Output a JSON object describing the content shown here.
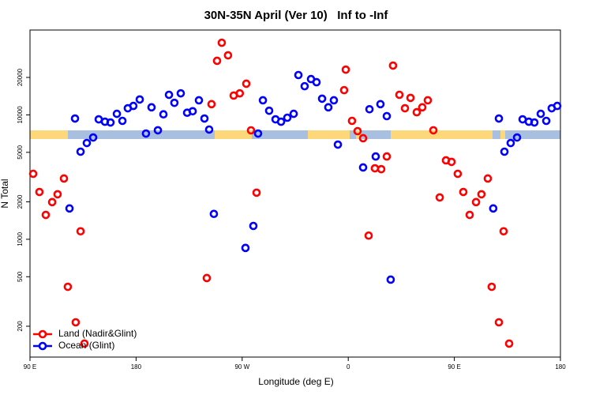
{
  "chart_data": {
    "type": "scatter",
    "title": "30N-35N April (Ver 10)   Inf to -Inf",
    "x_label": "Longitude (deg E)",
    "y_label": "N Total",
    "log_y": true,
    "legend": "bottom-left",
    "xlim": [
      90,
      540
    ],
    "ylim": [
      113,
      48100
    ],
    "xticks": [
      {
        "value": 90,
        "label": "90 E"
      },
      180,
      {
        "value": 270,
        "label": "90 W"
      },
      {
        "value": 360,
        "label": "0"
      },
      {
        "value": 450,
        "label": "90 E"
      },
      {
        "value": 540,
        "label": "180"
      }
    ],
    "yticks": [
      200,
      500,
      1000,
      2000,
      5000,
      10000,
      20000
    ],
    "series": [
      {
        "name": "Land (Nadir&Glint)",
        "color": "#ff0000",
        "x": [
          92.7,
          98,
          103.4,
          108.8,
          113.4,
          118.8,
          122.1,
          128.8,
          132.9,
          136.2,
          240,
          244,
          248.7,
          252.7,
          258,
          262.8,
          268,
          273.5,
          277.5,
          282.2,
          356.5,
          357.9,
          363.2,
          367.9,
          372.6,
          377.3,
          382.6,
          388,
          392.7,
          398,
          403.4,
          408.1,
          412.8,
          418.1,
          422.8,
          427.5,
          432.2,
          437.6,
          442.9,
          447.6,
          452.9,
          457.6,
          463,
          468.4,
          473,
          478.4,
          481.7,
          487.8,
          491.8,
          496.5
        ],
        "values": [
          3360,
          2400,
          1570,
          1990,
          2300,
          3080,
          415,
          215,
          1160,
          145,
          488,
          12200,
          27200,
          38000,
          30100,
          14300,
          14900,
          17800,
          7510,
          2370,
          15800,
          23100,
          8950,
          7400,
          6490,
          1070,
          3720,
          3660,
          4630,
          24900,
          14500,
          11300,
          13700,
          10500,
          11500,
          13100,
          7520,
          2170,
          4310,
          4190,
          3360,
          2400,
          1570,
          1990,
          2300,
          3080,
          415,
          215,
          1160,
          145
        ]
      },
      {
        "name": "Ocean (Glint)",
        "color": "#0000ff",
        "x": [
          123.5,
          128.2,
          132.9,
          138.2,
          143.6,
          148.3,
          153.6,
          158.3,
          163.7,
          168.4,
          173,
          177.7,
          183.1,
          188.4,
          193.1,
          198.5,
          203.2,
          207.9,
          212.5,
          217.9,
          223.3,
          228,
          233.3,
          238,
          242,
          246,
          272.8,
          279.5,
          283.5,
          287.6,
          292.9,
          298.3,
          303,
          308.3,
          313.7,
          317.7,
          323,
          328.4,
          333.1,
          337.8,
          343.1,
          347.8,
          351.2,
          372.6,
          378,
          383.3,
          387.3,
          392.7,
          396,
          483,
          487.8,
          492.5,
          497.8,
          503.2,
          507.9,
          513.2,
          517.9,
          523.3,
          528,
          532.6,
          537.3
        ],
        "values": [
          1770,
          9350,
          5060,
          5940,
          6580,
          9210,
          8810,
          8690,
          10200,
          8950,
          11300,
          11800,
          13300,
          7080,
          11500,
          7520,
          10100,
          14500,
          12500,
          14900,
          10400,
          10700,
          13100,
          9350,
          7620,
          1600,
          852,
          1280,
          7080,
          13100,
          10800,
          9210,
          8810,
          9490,
          10200,
          20900,
          17000,
          19400,
          18300,
          13500,
          11500,
          13100,
          5770,
          3780,
          11100,
          4630,
          12200,
          9770,
          474,
          1770,
          9350,
          5060,
          5940,
          6580,
          9210,
          8810,
          8690,
          10200,
          8950,
          11300,
          11800
        ]
      }
    ]
  }
}
